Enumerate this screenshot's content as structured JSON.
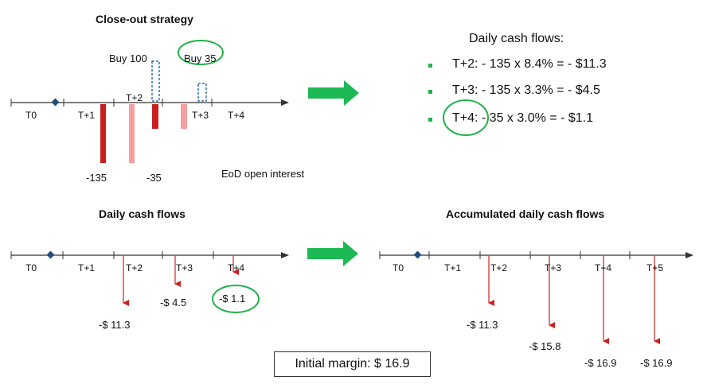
{
  "top_left": {
    "title": "Close-out strategy",
    "buy_left": "Buy 100",
    "buy_right": "Buy 35",
    "ticks": [
      "T0",
      "T+1",
      "T+2",
      "T+3",
      "T+4"
    ],
    "bar_labels": [
      "-135",
      "-35"
    ],
    "legend_text": "EoD open interest"
  },
  "top_right": {
    "title": "Daily cash flows:",
    "bullets": [
      "T+2: - 135 x 8.4% = - $11.3",
      "T+3: - 135 x 3.3% = - $4.5",
      "T+4: - 35 x 3.0% = - $1.1"
    ]
  },
  "bottom_left": {
    "title": "Daily cash flows",
    "ticks": [
      "T0",
      "T+1",
      "T+2",
      "T+3",
      "T+4"
    ],
    "values": [
      "-$ 11.3",
      "-$ 4.5",
      "-$ 1.1"
    ]
  },
  "bottom_right": {
    "title": "Accumulated daily cash flows",
    "ticks": [
      "T0",
      "T+1",
      "T+2",
      "T+3",
      "T+4",
      "T+5"
    ],
    "values": [
      "-$ 11.3",
      "-$ 15.8",
      "-$ 16.9",
      "-$ 16.9"
    ]
  },
  "initial_margin": "Initial margin: $ 16.9",
  "colors": {
    "dark_red": "#c81e1e",
    "light_red": "#f4a0a0",
    "green": "#22b14c",
    "blue_dash": "#2f6fb2",
    "arrow_red": "#cc2222",
    "diamond": "#1f4e79"
  }
}
